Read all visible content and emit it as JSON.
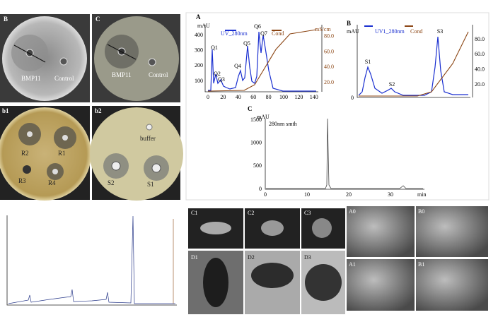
{
  "panel_b": {
    "label": "B",
    "well_labels": [
      "BMP11",
      "Control"
    ]
  },
  "panel_c": {
    "label": "C",
    "well_labels": [
      "BMP11",
      "Control"
    ]
  },
  "panel_b1": {
    "label": "b1",
    "well_labels": [
      "R2",
      "R1",
      "R3",
      "R4"
    ]
  },
  "panel_b2": {
    "label": "b2",
    "well_labels": [
      "buffer",
      "S2",
      "S1"
    ]
  },
  "chrom_a": {
    "label": "A",
    "y_unit": "mAU",
    "y2_unit": "mS/cm",
    "legend": [
      "UV_280nm",
      "Cond"
    ],
    "yticks": [
      100,
      200,
      300,
      400
    ],
    "y2ticks": [
      "20.0",
      "40.0",
      "60.0",
      "80.0"
    ],
    "xticks": [
      0,
      20,
      40,
      60,
      80,
      100,
      120,
      140
    ],
    "peaks": [
      "Q1",
      "Q2",
      "Q3",
      "Q4",
      "Q5",
      "Q6",
      "Q7"
    ]
  },
  "chrom_b": {
    "label": "B",
    "y_unit": "mAU",
    "legend": [
      "UV1_280nm",
      "Cond"
    ],
    "yticks": [
      0
    ],
    "y2ticks": [
      "20.0",
      "40.0",
      "60.0",
      "80.0"
    ],
    "peaks": [
      "S1",
      "S2",
      "S3"
    ]
  },
  "chrom_c": {
    "label": "C",
    "y_unit": "mAU",
    "trace": "280nm smth",
    "yticks": [
      0,
      500,
      1000,
      1500
    ],
    "xticks": [
      0,
      10,
      20,
      30
    ],
    "x_unit": "min"
  },
  "sem": {
    "labels": [
      "C1",
      "C2",
      "C3",
      "D1",
      "D2",
      "D3",
      "A0",
      "B0",
      "A1",
      "B1"
    ]
  }
}
